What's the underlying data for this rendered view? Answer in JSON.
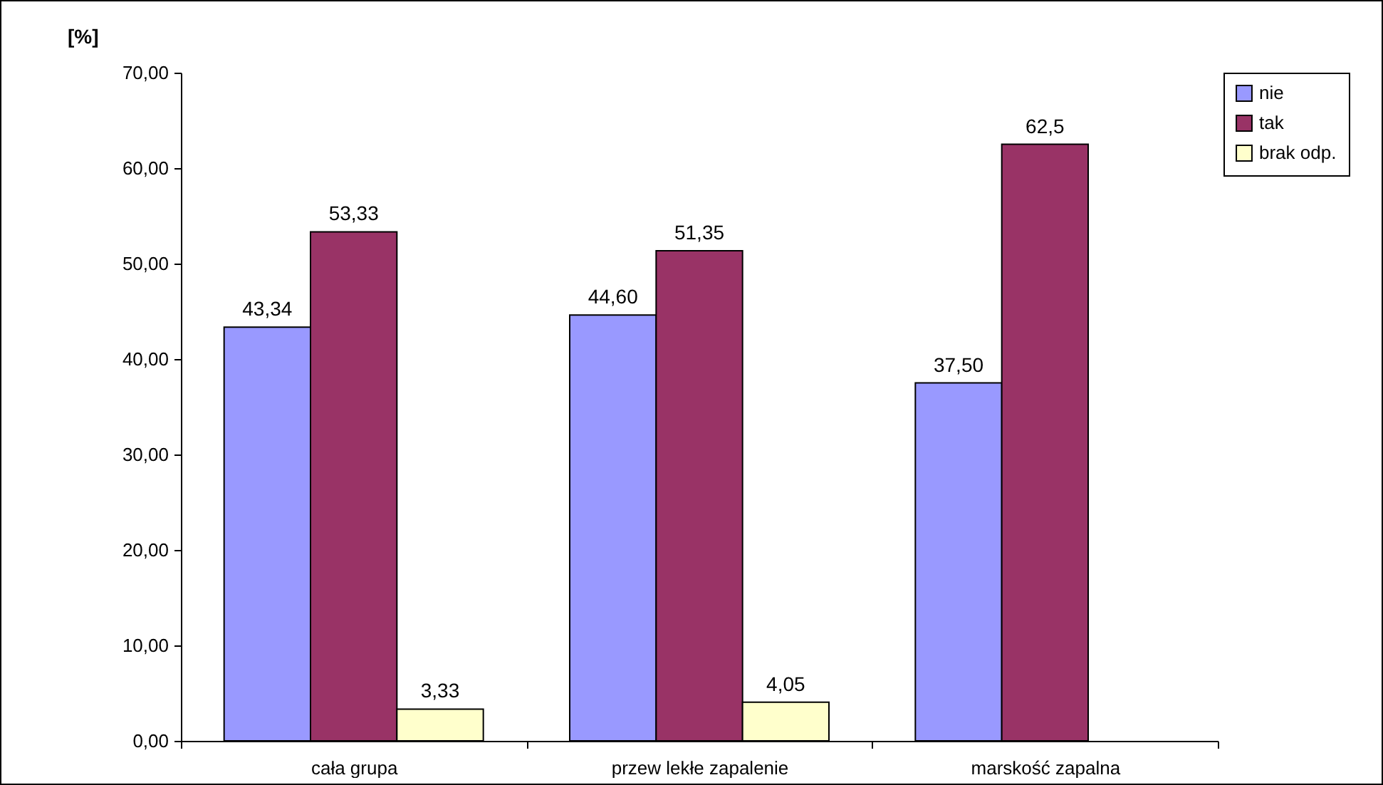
{
  "chart_data": {
    "type": "bar",
    "ylabel": "[%]",
    "categories": [
      "cała grupa",
      "przew lekłe zapalenie",
      "marskość zapalna"
    ],
    "series": [
      {
        "name": "nie",
        "color": "#9999ff",
        "values": [
          43.34,
          44.6,
          37.5
        ],
        "value_labels": [
          "43,34",
          "44,60",
          "37,50"
        ]
      },
      {
        "name": "tak",
        "color": "#993366",
        "values": [
          53.33,
          51.35,
          62.5
        ],
        "value_labels": [
          "53,33",
          "51,35",
          "62,5"
        ]
      },
      {
        "name": "brak odp.",
        "color": "#ffffcc",
        "values": [
          3.33,
          4.05,
          null
        ],
        "value_labels": [
          "3,33",
          "4,05",
          null
        ]
      }
    ],
    "ylim": [
      0,
      70
    ],
    "yticks": [
      {
        "value": 0,
        "label": "0,00"
      },
      {
        "value": 10,
        "label": "10,00"
      },
      {
        "value": 20,
        "label": "20,00"
      },
      {
        "value": 30,
        "label": "30,00"
      },
      {
        "value": 40,
        "label": "40,00"
      },
      {
        "value": 50,
        "label": "50,00"
      },
      {
        "value": 60,
        "label": "60,00"
      },
      {
        "value": 70,
        "label": "70,00"
      }
    ],
    "grid": false,
    "legend": "top right"
  }
}
